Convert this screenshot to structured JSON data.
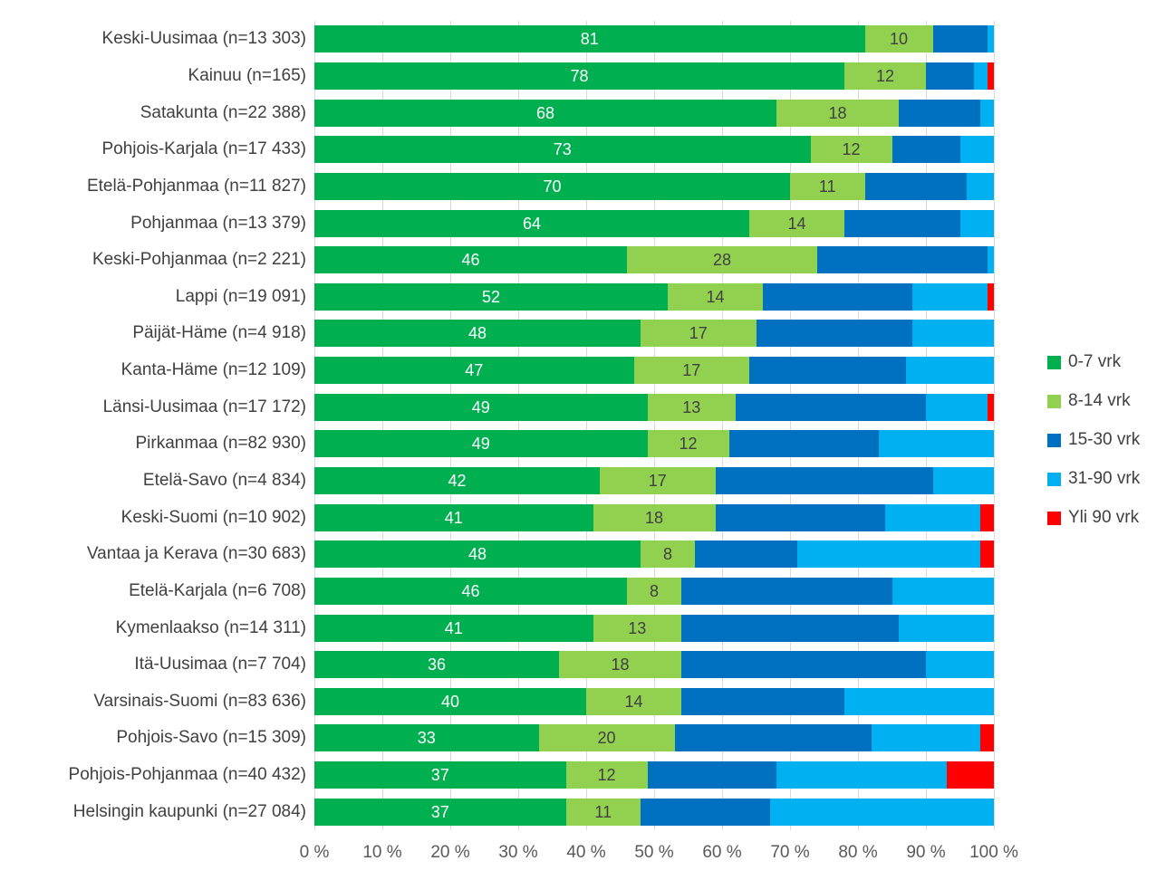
{
  "chart_data": {
    "type": "bar",
    "orientation": "horizontal-stacked",
    "title": "",
    "xlabel": "",
    "ylabel": "",
    "unit": "%",
    "xlim": [
      0,
      100
    ],
    "grid": "vertical-10pct",
    "legend_position": "right",
    "series_names": [
      "0-7 vrk",
      "8-14 vrk",
      "15-30 vrk",
      "31-90 vrk",
      "Yli 90 vrk"
    ],
    "series_colors": [
      "#00B050",
      "#92D050",
      "#0070C0",
      "#00B0F0",
      "#FF0000"
    ],
    "labeled_series_indexes": [
      0,
      1
    ],
    "xticks": [
      "0 %",
      "10 %",
      "20 %",
      "30 %",
      "40 %",
      "50 %",
      "60 %",
      "70 %",
      "80 %",
      "90 %",
      "100 %"
    ],
    "rows": [
      {
        "label": "Keski-Uusimaa (n=13 303)",
        "values": [
          81,
          10,
          8,
          1,
          0
        ]
      },
      {
        "label": "Kainuu (n=165)",
        "values": [
          78,
          12,
          7,
          2,
          1
        ]
      },
      {
        "label": "Satakunta (n=22 388)",
        "values": [
          68,
          18,
          12,
          2,
          0
        ]
      },
      {
        "label": "Pohjois-Karjala (n=17 433)",
        "values": [
          73,
          12,
          10,
          5,
          0
        ]
      },
      {
        "label": "Etelä-Pohjanmaa (n=11 827)",
        "values": [
          70,
          11,
          15,
          4,
          0
        ]
      },
      {
        "label": "Pohjanmaa (n=13 379)",
        "values": [
          64,
          14,
          17,
          5,
          0
        ]
      },
      {
        "label": "Keski-Pohjanmaa (n=2 221)",
        "values": [
          46,
          28,
          25,
          1,
          0
        ]
      },
      {
        "label": "Lappi (n=19 091)",
        "values": [
          52,
          14,
          22,
          11,
          1
        ]
      },
      {
        "label": "Päijät-Häme (n=4 918)",
        "values": [
          48,
          17,
          23,
          12,
          0
        ]
      },
      {
        "label": "Kanta-Häme (n=12 109)",
        "values": [
          47,
          17,
          23,
          13,
          0
        ]
      },
      {
        "label": "Länsi-Uusimaa (n=17 172)",
        "values": [
          49,
          13,
          28,
          9,
          1
        ]
      },
      {
        "label": "Pirkanmaa (n=82 930)",
        "values": [
          49,
          12,
          22,
          17,
          0
        ]
      },
      {
        "label": "Etelä-Savo (n=4 834)",
        "values": [
          42,
          17,
          32,
          9,
          0
        ]
      },
      {
        "label": "Keski-Suomi (n=10 902)",
        "values": [
          41,
          18,
          25,
          14,
          2
        ]
      },
      {
        "label": "Vantaa ja Kerava (n=30 683)",
        "values": [
          48,
          8,
          15,
          27,
          2
        ]
      },
      {
        "label": "Etelä-Karjala (n=6 708)",
        "values": [
          46,
          8,
          31,
          15,
          0
        ]
      },
      {
        "label": "Kymenlaakso (n=14 311)",
        "values": [
          41,
          13,
          32,
          14,
          0
        ]
      },
      {
        "label": "Itä-Uusimaa (n=7 704)",
        "values": [
          36,
          18,
          36,
          10,
          0
        ]
      },
      {
        "label": "Varsinais-Suomi (n=83 636)",
        "values": [
          40,
          14,
          24,
          22,
          0
        ]
      },
      {
        "label": "Pohjois-Savo (n=15 309)",
        "values": [
          33,
          20,
          29,
          16,
          2
        ]
      },
      {
        "label": "Pohjois-Pohjanmaa (n=40 432)",
        "values": [
          37,
          12,
          19,
          25,
          7
        ]
      },
      {
        "label": "Helsingin kaupunki (n=27 084)",
        "values": [
          37,
          11,
          19,
          33,
          0
        ]
      }
    ]
  },
  "legend": {
    "items": [
      {
        "label": "0-7 vrk",
        "color": "#00B050"
      },
      {
        "label": "8-14 vrk",
        "color": "#92D050"
      },
      {
        "label": "15-30 vrk",
        "color": "#0070C0"
      },
      {
        "label": "31-90 vrk",
        "color": "#00B0F0"
      },
      {
        "label": "Yli 90 vrk",
        "color": "#FF0000"
      }
    ]
  },
  "colors": {
    "gridline": "#d9d9d9",
    "category_text": "#404040",
    "axis_text": "#595959",
    "bar_label_on_green": "#ffffff",
    "bar_label_on_lightgreen": "#404040",
    "background": "#ffffff"
  }
}
